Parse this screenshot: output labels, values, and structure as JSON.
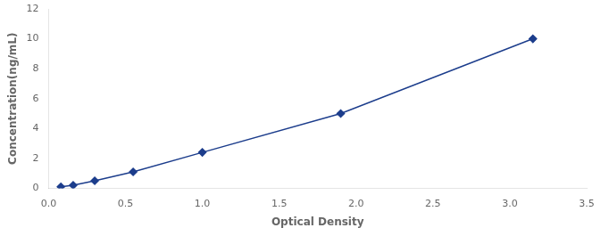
{
  "chart_data": {
    "type": "line",
    "x": [
      0.08,
      0.16,
      0.3,
      0.55,
      1.0,
      1.9,
      3.15
    ],
    "values": [
      0.1,
      0.2,
      0.5,
      1.1,
      2.4,
      5.0,
      10.0
    ],
    "xlabel": "Optical Density",
    "ylabel": "Concentration(ng/mL)",
    "xlim": [
      0,
      3.5
    ],
    "ylim": [
      0,
      12
    ],
    "xticks": [
      {
        "value": 0,
        "label": "0.0"
      },
      0.5,
      {
        "value": 1.0,
        "label": "1.0"
      },
      1.5,
      {
        "value": 2.0,
        "label": "2.0"
      },
      2.5,
      {
        "value": 3.0,
        "label": "3.0"
      },
      3.5
    ],
    "yticks": [
      0,
      2,
      4,
      6,
      8,
      10,
      12
    ],
    "color": "#1c3d8c",
    "marker": "diamond",
    "line_style": "solid",
    "grid": false
  }
}
